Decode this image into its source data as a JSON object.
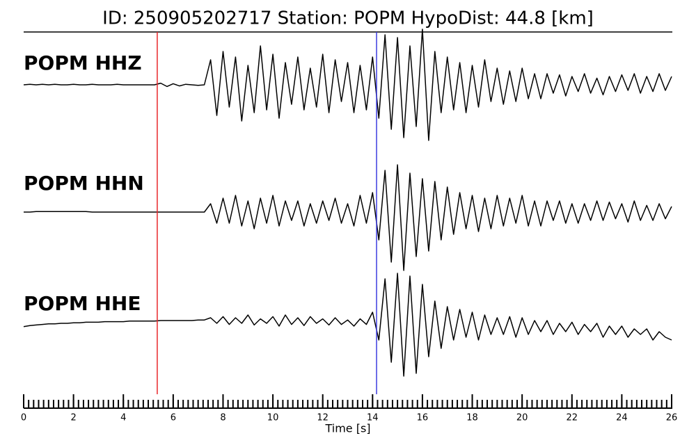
{
  "chart_data": {
    "type": "line",
    "title": "ID: 250905202717   Station: POPM   HypoDist:    44.8 [km]",
    "xlabel": "Time [s]",
    "xlim": [
      0,
      26
    ],
    "xticks": [
      0,
      2,
      4,
      6,
      8,
      10,
      12,
      14,
      16,
      18,
      20,
      22,
      24,
      26
    ],
    "xminor_step": 0.2,
    "vlines": [
      {
        "value": 5.36,
        "color": "#e8262a"
      },
      {
        "value": 14.16,
        "color": "#3c3ce0"
      }
    ],
    "label_color": "#4a9a0a",
    "x": [
      0,
      0.25,
      0.5,
      0.75,
      1,
      1.25,
      1.5,
      1.75,
      2,
      2.25,
      2.5,
      2.75,
      3,
      3.25,
      3.5,
      3.75,
      4,
      4.25,
      4.5,
      4.75,
      5,
      5.25,
      5.5,
      5.75,
      6,
      6.25,
      6.5,
      6.75,
      7,
      7.25,
      7.5,
      7.75,
      8,
      8.25,
      8.5,
      8.75,
      9,
      9.25,
      9.5,
      9.75,
      10,
      10.25,
      10.5,
      10.75,
      11,
      11.25,
      11.5,
      11.75,
      12,
      12.25,
      12.5,
      12.75,
      13,
      13.25,
      13.5,
      13.75,
      14,
      14.25,
      14.5,
      14.75,
      15,
      15.25,
      15.5,
      15.75,
      16,
      16.25,
      16.5,
      16.75,
      17,
      17.25,
      17.5,
      17.75,
      18,
      18.25,
      18.5,
      18.75,
      19,
      19.25,
      19.5,
      19.75,
      20,
      20.25,
      20.5,
      20.75,
      21,
      21.25,
      21.5,
      21.75,
      22,
      22.25,
      22.5,
      22.75,
      23,
      23.25,
      23.5,
      23.75,
      24,
      24.25,
      24.5,
      24.75,
      25,
      25.25,
      25.5,
      25.75,
      26
    ],
    "series": [
      {
        "name": "POPM HHZ",
        "color": "#000000",
        "values": [
          0.0,
          0.01,
          0.0,
          0.01,
          0.0,
          0.01,
          0.0,
          0.0,
          0.01,
          0.0,
          0.0,
          0.01,
          0.0,
          0.0,
          0.0,
          0.01,
          0.0,
          0.0,
          0.0,
          0.0,
          0.0,
          0.0,
          0.03,
          -0.03,
          0.02,
          -0.02,
          0.01,
          0.0,
          -0.01,
          0.0,
          0.45,
          -0.55,
          0.6,
          -0.4,
          0.5,
          -0.65,
          0.35,
          -0.5,
          0.7,
          -0.45,
          0.55,
          -0.6,
          0.4,
          -0.35,
          0.5,
          -0.45,
          0.3,
          -0.4,
          0.55,
          -0.5,
          0.45,
          -0.3,
          0.4,
          -0.5,
          0.35,
          -0.45,
          0.5,
          -0.6,
          0.9,
          -0.8,
          0.85,
          -0.95,
          0.7,
          -0.75,
          1.0,
          -1.0,
          0.6,
          -0.5,
          0.5,
          -0.45,
          0.4,
          -0.5,
          0.35,
          -0.4,
          0.45,
          -0.3,
          0.3,
          -0.35,
          0.25,
          -0.3,
          0.3,
          -0.25,
          0.2,
          -0.25,
          0.2,
          -0.15,
          0.18,
          -0.2,
          0.15,
          -0.12,
          0.2,
          -0.15,
          0.12,
          -0.18,
          0.15,
          -0.12,
          0.18,
          -0.1,
          0.2,
          -0.15,
          0.15,
          -0.12,
          0.2,
          -0.1,
          0.15
        ]
      },
      {
        "name": "POPM HHN",
        "color": "#000000",
        "values": [
          0,
          0,
          0.01,
          0.01,
          0.01,
          0.01,
          0.01,
          0.01,
          0.01,
          0.01,
          0.01,
          0.0,
          0.0,
          0.0,
          0.0,
          0.0,
          0.0,
          0.0,
          0.0,
          0.0,
          0.0,
          0.0,
          0.0,
          0.0,
          0.0,
          0.0,
          0.0,
          0.0,
          0.0,
          0.0,
          0.15,
          -0.2,
          0.25,
          -0.2,
          0.3,
          -0.25,
          0.2,
          -0.3,
          0.25,
          -0.2,
          0.3,
          -0.25,
          0.2,
          -0.15,
          0.2,
          -0.25,
          0.15,
          -0.2,
          0.2,
          -0.15,
          0.25,
          -0.2,
          0.15,
          -0.25,
          0.3,
          -0.2,
          0.35,
          -0.5,
          0.75,
          -0.9,
          0.85,
          -1.05,
          0.7,
          -0.8,
          0.6,
          -0.7,
          0.55,
          -0.5,
          0.45,
          -0.4,
          0.35,
          -0.3,
          0.3,
          -0.35,
          0.25,
          -0.3,
          0.3,
          -0.25,
          0.25,
          -0.2,
          0.3,
          -0.25,
          0.2,
          -0.25,
          0.2,
          -0.15,
          0.2,
          -0.2,
          0.15,
          -0.2,
          0.15,
          -0.15,
          0.2,
          -0.15,
          0.18,
          -0.12,
          0.15,
          -0.18,
          0.2,
          -0.15,
          0.12,
          -0.15,
          0.15,
          -0.12,
          0.1
        ]
      },
      {
        "name": "POPM HHE",
        "color": "#000000",
        "values": [
          -0.06,
          -0.04,
          -0.03,
          -0.02,
          -0.01,
          -0.01,
          0.0,
          0.0,
          0.01,
          0.01,
          0.02,
          0.02,
          0.02,
          0.03,
          0.03,
          0.03,
          0.03,
          0.04,
          0.04,
          0.04,
          0.04,
          0.04,
          0.05,
          0.05,
          0.05,
          0.05,
          0.05,
          0.05,
          0.06,
          0.06,
          0.1,
          0.0,
          0.12,
          -0.02,
          0.1,
          0.0,
          0.15,
          -0.03,
          0.08,
          0.0,
          0.12,
          -0.05,
          0.15,
          -0.02,
          0.1,
          -0.04,
          0.12,
          0.0,
          0.08,
          -0.03,
          0.1,
          -0.02,
          0.06,
          -0.05,
          0.08,
          -0.02,
          0.2,
          -0.3,
          0.8,
          -0.7,
          0.9,
          -0.95,
          0.85,
          -0.9,
          0.7,
          -0.6,
          0.4,
          -0.45,
          0.3,
          -0.3,
          0.25,
          -0.25,
          0.2,
          -0.3,
          0.15,
          -0.2,
          0.1,
          -0.2,
          0.12,
          -0.25,
          0.1,
          -0.2,
          0.05,
          -0.15,
          0.05,
          -0.2,
          0.0,
          -0.15,
          0.02,
          -0.2,
          -0.02,
          -0.15,
          0.0,
          -0.25,
          -0.05,
          -0.2,
          -0.05,
          -0.25,
          -0.1,
          -0.2,
          -0.1,
          -0.3,
          -0.15,
          -0.25,
          -0.3
        ]
      }
    ]
  }
}
